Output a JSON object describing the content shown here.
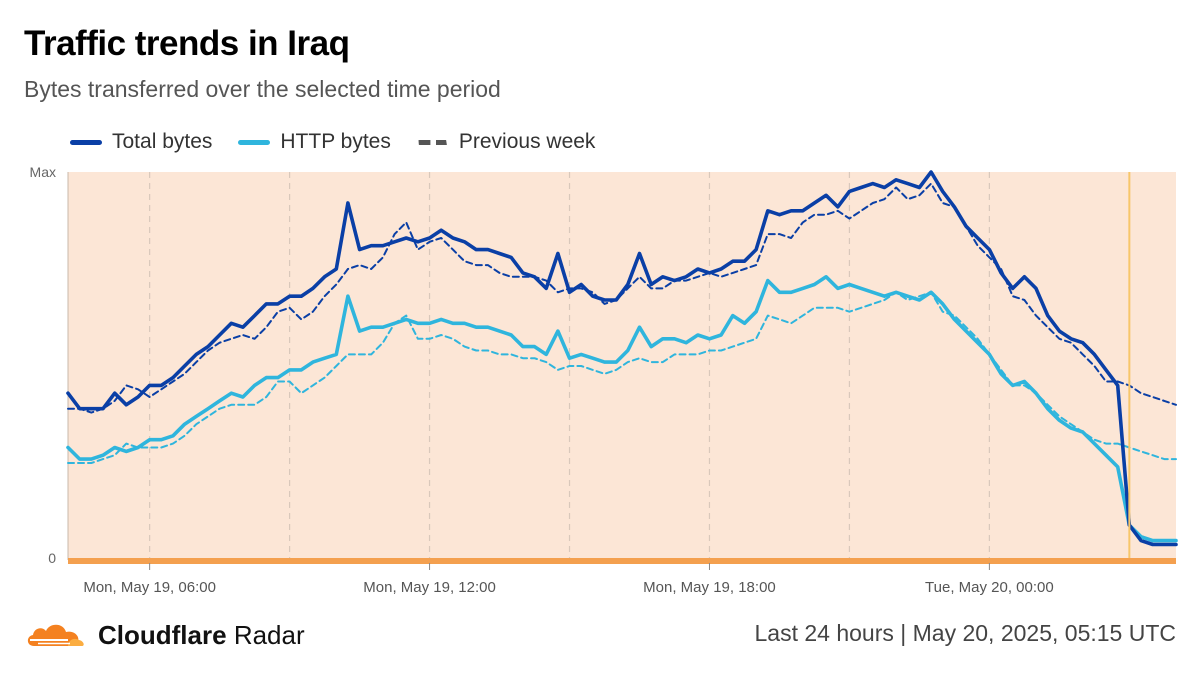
{
  "header": {
    "title": "Traffic trends in Iraq",
    "subtitle": "Bytes transferred over the selected time period"
  },
  "legend": [
    {
      "label": "Total bytes",
      "color": "#0a3fa6",
      "style": "solid"
    },
    {
      "label": "HTTP bytes",
      "color": "#2fb5dd",
      "style": "solid"
    },
    {
      "label": "Previous week",
      "color": "#555555",
      "style": "dashed"
    }
  ],
  "footer": {
    "brand_bold": "Cloudflare",
    "brand_light": "Radar",
    "period": "Last 24 hours",
    "separator": "|",
    "timestamp": "May 20, 2025, 05:15 UTC"
  },
  "chart_data": {
    "type": "line",
    "title": "Traffic trends in Iraq",
    "subtitle": "Bytes transferred over the selected time period",
    "ylabel": "",
    "xlabel": "",
    "y_ticks": [
      "0",
      "Max"
    ],
    "x_ticks": [
      "Mon, May 19, 06:00",
      "Mon, May 19, 12:00",
      "Mon, May 19, 18:00",
      "Tue, May 20, 00:00"
    ],
    "x_tick_positions_hours": [
      6,
      12,
      18,
      24
    ],
    "x_range_hours": [
      4.25,
      28.0
    ],
    "y_range": [
      0,
      1
    ],
    "grid": "vertical dashed lines every 3 hours",
    "legend_position": "top-left",
    "background": "#fce6d6",
    "marker_hour": 27.0,
    "x": [
      4.25,
      4.5,
      4.75,
      5.0,
      5.25,
      5.5,
      5.75,
      6.0,
      6.25,
      6.5,
      6.75,
      7.0,
      7.25,
      7.5,
      7.75,
      8.0,
      8.25,
      8.5,
      8.75,
      9.0,
      9.25,
      9.5,
      9.75,
      10.0,
      10.25,
      10.5,
      10.75,
      11.0,
      11.25,
      11.5,
      11.75,
      12.0,
      12.25,
      12.5,
      12.75,
      13.0,
      13.25,
      13.5,
      13.75,
      14.0,
      14.25,
      14.5,
      14.75,
      15.0,
      15.25,
      15.5,
      15.75,
      16.0,
      16.25,
      16.5,
      16.75,
      17.0,
      17.25,
      17.5,
      17.75,
      18.0,
      18.25,
      18.5,
      18.75,
      19.0,
      19.25,
      19.5,
      19.75,
      20.0,
      20.25,
      20.5,
      20.75,
      21.0,
      21.25,
      21.5,
      21.75,
      22.0,
      22.25,
      22.5,
      22.75,
      23.0,
      23.25,
      23.5,
      23.75,
      24.0,
      24.25,
      24.5,
      24.75,
      25.0,
      25.25,
      25.5,
      25.75,
      26.0,
      26.25,
      26.5,
      26.75,
      27.0,
      27.25,
      27.5,
      27.75,
      28.0
    ],
    "series": [
      {
        "name": "Total bytes",
        "color": "#0a3fa6",
        "dashed": false,
        "values": [
          0.43,
          0.39,
          0.39,
          0.39,
          0.43,
          0.4,
          0.42,
          0.45,
          0.45,
          0.47,
          0.5,
          0.53,
          0.55,
          0.58,
          0.61,
          0.6,
          0.63,
          0.66,
          0.66,
          0.68,
          0.68,
          0.7,
          0.73,
          0.75,
          0.92,
          0.8,
          0.81,
          0.81,
          0.82,
          0.83,
          0.82,
          0.83,
          0.85,
          0.83,
          0.82,
          0.8,
          0.8,
          0.79,
          0.78,
          0.74,
          0.73,
          0.7,
          0.79,
          0.69,
          0.71,
          0.68,
          0.67,
          0.67,
          0.71,
          0.79,
          0.71,
          0.73,
          0.72,
          0.73,
          0.75,
          0.74,
          0.75,
          0.77,
          0.77,
          0.8,
          0.9,
          0.89,
          0.9,
          0.9,
          0.92,
          0.94,
          0.91,
          0.95,
          0.96,
          0.97,
          0.96,
          0.98,
          0.97,
          0.96,
          1.0,
          0.95,
          0.91,
          0.86,
          0.83,
          0.8,
          0.74,
          0.7,
          0.73,
          0.7,
          0.63,
          0.59,
          0.57,
          0.56,
          0.53,
          0.49,
          0.45,
          0.09,
          0.05,
          0.04,
          0.04,
          0.04
        ]
      },
      {
        "name": "HTTP bytes",
        "color": "#2fb5dd",
        "dashed": false,
        "values": [
          0.29,
          0.26,
          0.26,
          0.27,
          0.29,
          0.28,
          0.29,
          0.31,
          0.31,
          0.32,
          0.35,
          0.37,
          0.39,
          0.41,
          0.43,
          0.42,
          0.45,
          0.47,
          0.47,
          0.49,
          0.49,
          0.51,
          0.52,
          0.53,
          0.68,
          0.59,
          0.6,
          0.6,
          0.61,
          0.62,
          0.61,
          0.61,
          0.62,
          0.61,
          0.61,
          0.6,
          0.6,
          0.59,
          0.58,
          0.55,
          0.55,
          0.53,
          0.59,
          0.52,
          0.53,
          0.52,
          0.51,
          0.51,
          0.54,
          0.6,
          0.55,
          0.57,
          0.57,
          0.56,
          0.58,
          0.57,
          0.58,
          0.63,
          0.61,
          0.64,
          0.72,
          0.69,
          0.69,
          0.7,
          0.71,
          0.73,
          0.7,
          0.71,
          0.7,
          0.69,
          0.68,
          0.69,
          0.68,
          0.67,
          0.69,
          0.66,
          0.62,
          0.59,
          0.56,
          0.53,
          0.48,
          0.45,
          0.46,
          0.43,
          0.39,
          0.36,
          0.34,
          0.33,
          0.3,
          0.27,
          0.24,
          0.09,
          0.06,
          0.05,
          0.05,
          0.05
        ]
      },
      {
        "name": "Previous week Total",
        "color": "#0a3fa6",
        "dashed": true,
        "values": [
          0.39,
          0.39,
          0.38,
          0.39,
          0.41,
          0.45,
          0.44,
          0.42,
          0.44,
          0.46,
          0.48,
          0.51,
          0.54,
          0.56,
          0.57,
          0.58,
          0.57,
          0.6,
          0.64,
          0.65,
          0.62,
          0.64,
          0.68,
          0.71,
          0.75,
          0.76,
          0.75,
          0.78,
          0.84,
          0.87,
          0.8,
          0.82,
          0.83,
          0.8,
          0.77,
          0.76,
          0.76,
          0.74,
          0.73,
          0.73,
          0.73,
          0.72,
          0.69,
          0.7,
          0.7,
          0.69,
          0.66,
          0.67,
          0.7,
          0.73,
          0.7,
          0.7,
          0.72,
          0.72,
          0.73,
          0.74,
          0.73,
          0.74,
          0.75,
          0.76,
          0.84,
          0.84,
          0.83,
          0.87,
          0.89,
          0.89,
          0.9,
          0.88,
          0.9,
          0.92,
          0.93,
          0.96,
          0.93,
          0.94,
          0.97,
          0.92,
          0.91,
          0.86,
          0.81,
          0.78,
          0.75,
          0.68,
          0.67,
          0.63,
          0.6,
          0.57,
          0.56,
          0.53,
          0.5,
          0.46,
          0.46,
          0.45,
          0.43,
          0.42,
          0.41,
          0.4
        ]
      },
      {
        "name": "Previous week HTTP",
        "color": "#2fb5dd",
        "dashed": true,
        "values": [
          0.25,
          0.25,
          0.25,
          0.26,
          0.27,
          0.3,
          0.29,
          0.29,
          0.29,
          0.3,
          0.32,
          0.35,
          0.37,
          0.39,
          0.4,
          0.4,
          0.4,
          0.42,
          0.46,
          0.46,
          0.43,
          0.45,
          0.47,
          0.5,
          0.53,
          0.53,
          0.53,
          0.56,
          0.61,
          0.63,
          0.57,
          0.57,
          0.58,
          0.57,
          0.55,
          0.54,
          0.54,
          0.53,
          0.53,
          0.52,
          0.52,
          0.51,
          0.49,
          0.5,
          0.5,
          0.49,
          0.48,
          0.49,
          0.51,
          0.52,
          0.51,
          0.51,
          0.53,
          0.53,
          0.53,
          0.54,
          0.54,
          0.55,
          0.56,
          0.57,
          0.63,
          0.62,
          0.61,
          0.63,
          0.65,
          0.65,
          0.65,
          0.64,
          0.65,
          0.66,
          0.67,
          0.69,
          0.67,
          0.68,
          0.69,
          0.64,
          0.63,
          0.6,
          0.57,
          0.53,
          0.49,
          0.45,
          0.45,
          0.43,
          0.4,
          0.37,
          0.35,
          0.33,
          0.31,
          0.3,
          0.3,
          0.29,
          0.28,
          0.27,
          0.26,
          0.26
        ]
      }
    ]
  }
}
